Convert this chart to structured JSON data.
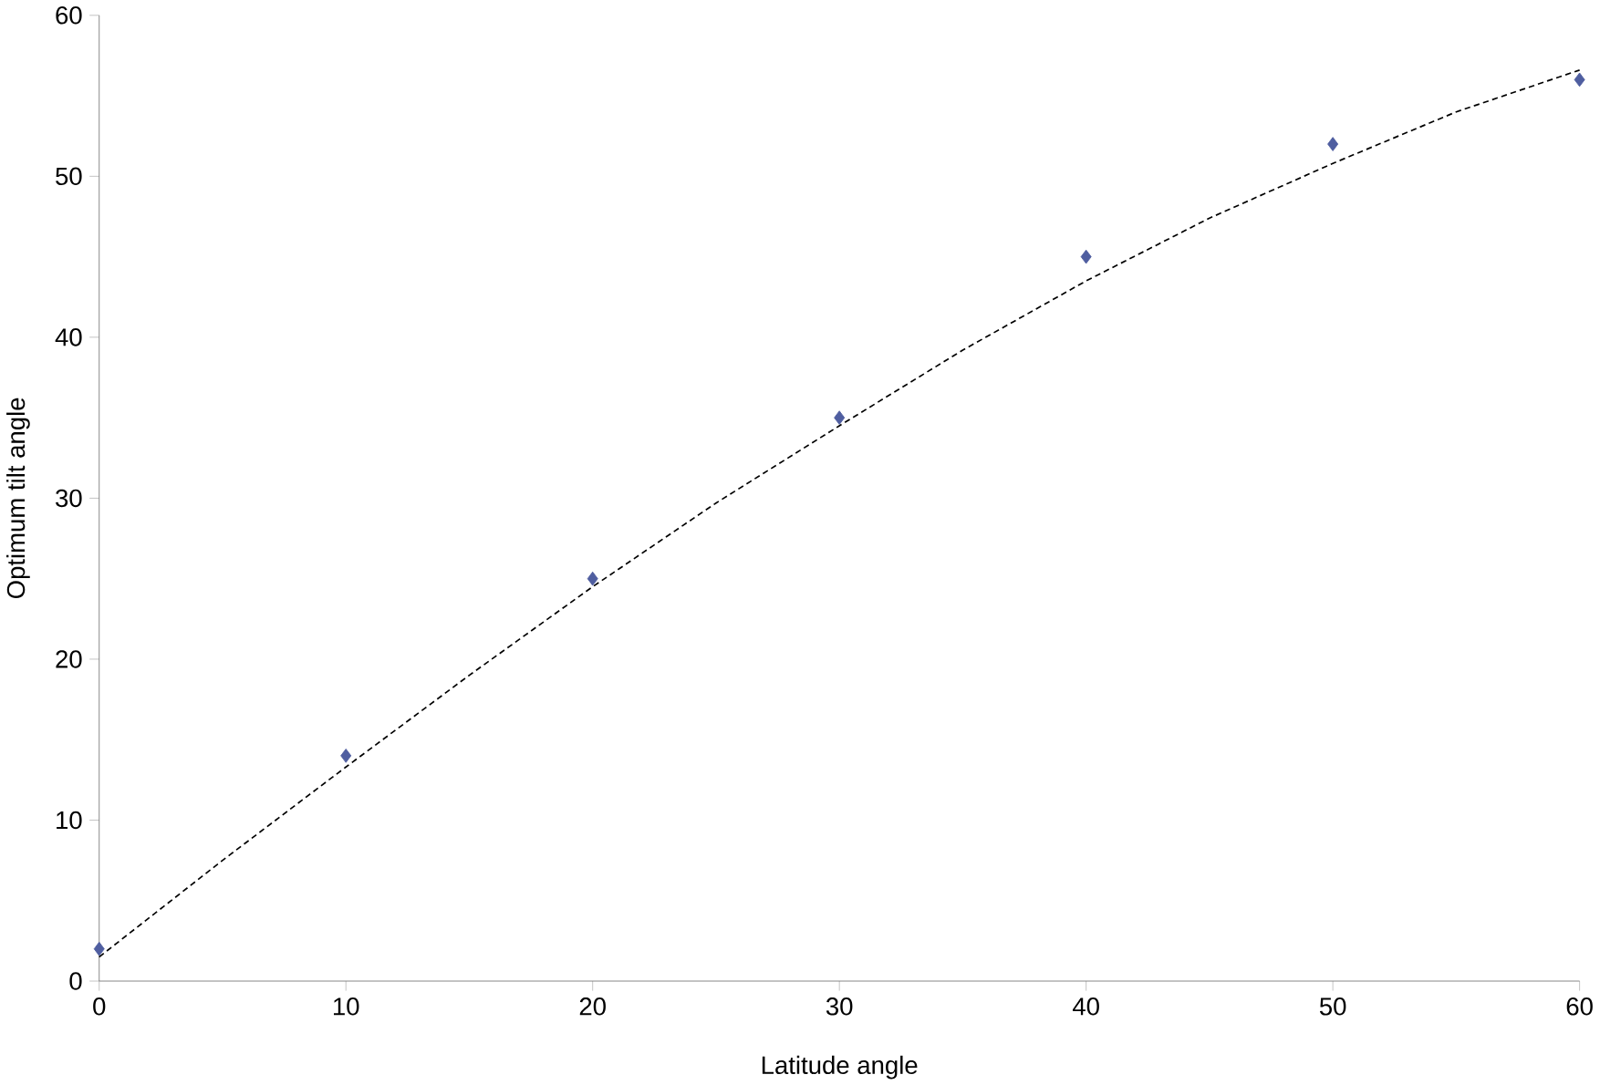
{
  "chart_data": {
    "type": "scatter",
    "xlabel": "Latitude angle",
    "ylabel": "Optimum tilt angle",
    "xlim": [
      0,
      60
    ],
    "xticks": [
      0,
      10,
      20,
      30,
      40,
      50,
      60
    ],
    "ylim": [
      0,
      60
    ],
    "yticks": [
      0,
      10,
      20,
      30,
      40,
      50,
      60
    ],
    "grid": false,
    "series": [
      {
        "type": "line",
        "color": "#000000",
        "line_style": "dashed",
        "marker": "none",
        "x": [
          0,
          5,
          10,
          15,
          20,
          25,
          30,
          35,
          40,
          45,
          50,
          55,
          60
        ],
        "values": [
          1.5,
          7.5,
          13.3,
          19,
          24.5,
          29.7,
          34.5,
          39.2,
          43.5,
          47.4,
          50.8,
          54,
          56.6
        ]
      },
      {
        "color": "#4f5ea0",
        "marker": "diamond",
        "x": [
          0,
          10,
          20,
          30,
          40,
          50,
          60
        ],
        "values": [
          2,
          14,
          25,
          35,
          45,
          52,
          56
        ]
      }
    ]
  }
}
